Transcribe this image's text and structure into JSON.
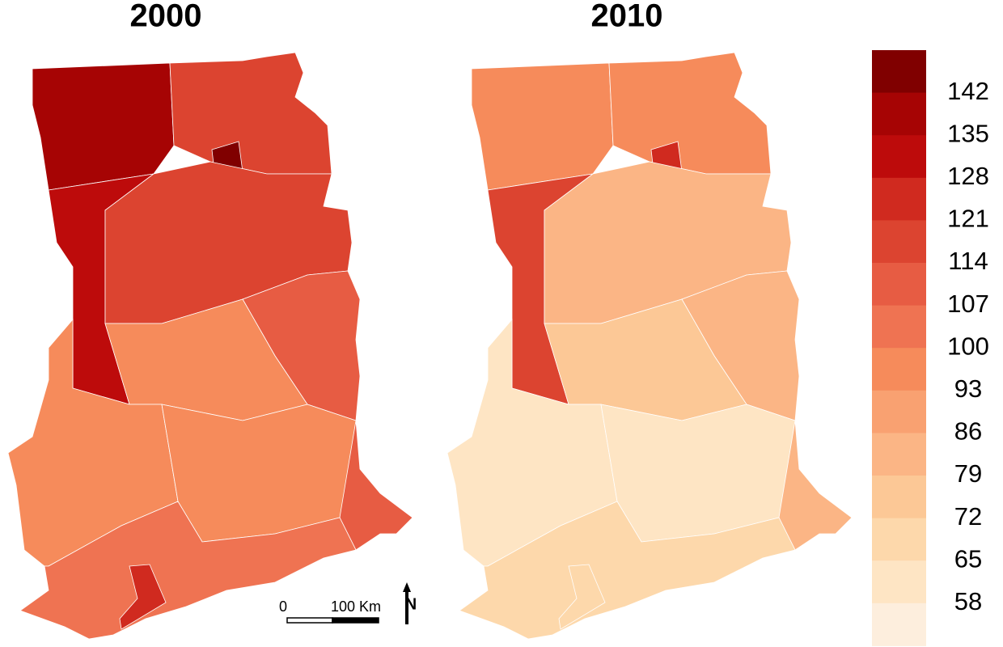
{
  "panels": [
    {
      "title": "2000",
      "regions": [
        138,
        118,
        150,
        130,
        116,
        112,
        100,
        95,
        98,
        110,
        104,
        124
      ]
    },
    {
      "title": "2010",
      "regions": [
        100,
        98,
        125,
        118,
        80,
        82,
        74,
        60,
        60,
        82,
        70,
        66
      ]
    }
  ],
  "legend": {
    "breaks": [
      142,
      135,
      128,
      121,
      114,
      107,
      100,
      93,
      86,
      79,
      72,
      65,
      58
    ],
    "colors": [
      "#800000",
      "#a60404",
      "#bd0b0b",
      "#d02a1f",
      "#dc4430",
      "#e75c43",
      "#ef7352",
      "#f68b5b",
      "#f9a171",
      "#fbb585",
      "#fcc896",
      "#fdd8ab",
      "#fee5c4",
      "#fdeedd"
    ]
  },
  "scale_bar": {
    "labels": [
      "0",
      "100 Km"
    ]
  },
  "north_arrow": "N"
}
